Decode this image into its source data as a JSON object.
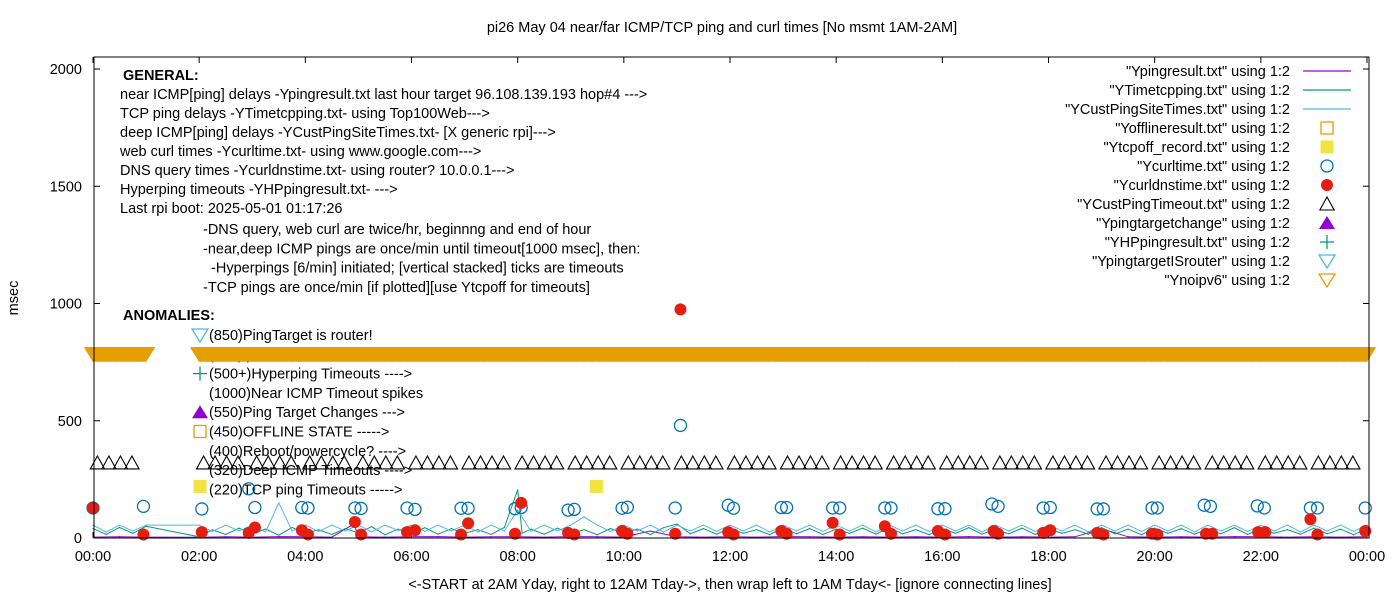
{
  "chart_data": {
    "type": "line",
    "title": "pi26 May 04  near/far ICMP/TCP ping and curl times [No msmt 1AM-2AM]",
    "xlabel": "<-START at 2AM Yday, right to 12AM Tday->, then wrap left to 1AM Tday<- [ignore connecting lines]",
    "ylabel": "msec",
    "xlim": [
      "00:00",
      "24:00"
    ],
    "ylim": [
      0,
      2050
    ],
    "x_ticks": [
      "00:00",
      "02:00",
      "04:00",
      "06:00",
      "08:00",
      "10:00",
      "12:00",
      "14:00",
      "16:00",
      "18:00",
      "20:00",
      "22:00",
      "00:00"
    ],
    "y_ticks": [
      "0",
      "500",
      "1000",
      "1500",
      "2000"
    ],
    "y_tick_values": [
      0,
      500,
      1000,
      1500,
      2000
    ],
    "grid": false,
    "legend_placement": "top-right",
    "colors": {
      "purple": "#9400d3",
      "green": "#009e73",
      "lightblue": "#56b4e9",
      "orange": "#e69f00",
      "yellow": "#f0e442",
      "blue": "#0072b2",
      "red": "#e51e10",
      "black": "#000000"
    },
    "legend": [
      {
        "label": "\"Ypingresult.txt\" using 1:2",
        "symbol": "line",
        "color": "#9400d3"
      },
      {
        "label": "\"YTimetcpping.txt\" using 1:2",
        "symbol": "line",
        "color": "#009e73"
      },
      {
        "label": "\"YCustPingSiteTimes.txt\" using 1:2",
        "symbol": "line",
        "color": "#56b4e9"
      },
      {
        "label": "\"Yofflineresult.txt\" using 1:2",
        "symbol": "open-square",
        "color": "#e69f00"
      },
      {
        "label": "\"Ytcpoff_record.txt\" using 1:2",
        "symbol": "filled-square",
        "color": "#f0e442"
      },
      {
        "label": "\"Ycurltime.txt\" using 1:2",
        "symbol": "open-circle",
        "color": "#0072b2"
      },
      {
        "label": "\"Ycurldnstime.txt\" using 1:2",
        "symbol": "filled-circle",
        "color": "#e51e10"
      },
      {
        "label": "\"YCustPingTimeout.txt\" using 1:2",
        "symbol": "open-triangle",
        "color": "#000000"
      },
      {
        "label": "\"Ypingtargetchange\" using 1:2",
        "symbol": "filled-triangle",
        "color": "#9400d3"
      },
      {
        "label": "\"YHPpingresult.txt\" using 1:2",
        "symbol": "plus",
        "color": "#009e73"
      },
      {
        "label": "\"YpingtargetISrouter\" using 1:2",
        "symbol": "open-down-triangle",
        "color": "#56b4e9"
      },
      {
        "label": "\"Ynoipv6\" using 1:2",
        "symbol": "open-down-triangle",
        "color": "#e69f00"
      }
    ],
    "series": [
      {
        "name": "\"Ypingresult.txt\" using 1:2",
        "kind": "line",
        "color": "#9400d3",
        "x": [
          "00:00",
          "00:30",
          "01:00",
          "02:00",
          "02:30",
          "03:00",
          "03:30",
          "04:00",
          "04:30",
          "04:55",
          "05:00",
          "05:30",
          "06:00",
          "06:30",
          "07:00",
          "07:30",
          "08:00",
          "08:30",
          "09:00",
          "09:30",
          "10:00",
          "10:30",
          "11:00",
          "11:30",
          "12:00",
          "12:30",
          "13:00",
          "13:30",
          "14:00",
          "14:30",
          "15:00",
          "15:30",
          "16:00",
          "16:30",
          "17:00",
          "17:30",
          "18:00",
          "18:30",
          "19:00",
          "19:30",
          "20:00",
          "20:30",
          "21:00",
          "21:30",
          "22:00",
          "22:30",
          "23:00",
          "23:30",
          "24:00"
        ],
        "y": [
          4,
          5,
          4,
          3,
          5,
          4,
          6,
          5,
          4,
          60,
          5,
          4,
          5,
          6,
          4,
          5,
          5,
          4,
          6,
          5,
          4,
          30,
          5,
          4,
          5,
          4,
          6,
          5,
          4,
          5,
          4,
          5,
          4,
          6,
          4,
          5,
          4,
          5,
          40,
          5,
          4,
          5,
          4,
          6,
          5,
          4,
          5,
          4,
          5
        ]
      },
      {
        "name": "\"YTimetcpping.txt\" using 1:2",
        "kind": "line",
        "color": "#009e73",
        "x": [
          "00:00",
          "00:15",
          "00:30",
          "00:45",
          "01:00",
          "02:00",
          "02:15",
          "02:30",
          "02:45",
          "03:00",
          "03:15",
          "03:30",
          "03:45",
          "04:00",
          "04:15",
          "04:30",
          "04:45",
          "05:00",
          "05:15",
          "05:30",
          "05:45",
          "06:00",
          "06:15",
          "06:30",
          "06:45",
          "07:00",
          "07:15",
          "07:30",
          "07:45",
          "08:00",
          "08:05",
          "08:15",
          "08:30",
          "08:45",
          "09:00",
          "09:15",
          "09:30",
          "09:45",
          "10:00",
          "10:15",
          "10:30",
          "10:45",
          "11:00",
          "11:15",
          "11:30",
          "11:45",
          "12:00",
          "12:15",
          "12:30",
          "12:45",
          "13:00",
          "13:15",
          "13:30",
          "13:45",
          "14:00",
          "14:15",
          "14:30",
          "14:45",
          "15:00",
          "15:15",
          "15:30",
          "15:45",
          "16:00",
          "16:15",
          "16:30",
          "16:45",
          "17:00",
          "17:15",
          "17:30",
          "17:45",
          "18:00",
          "18:15",
          "18:30",
          "18:45",
          "19:00",
          "19:15",
          "19:30",
          "19:45",
          "20:00",
          "20:15",
          "20:30",
          "20:45",
          "21:00",
          "21:15",
          "21:30",
          "21:45",
          "22:00",
          "22:15",
          "22:30",
          "22:45",
          "23:00",
          "23:15",
          "23:30",
          "23:45",
          "24:00"
        ],
        "y": [
          40,
          15,
          45,
          20,
          50,
          5,
          35,
          15,
          42,
          18,
          38,
          12,
          45,
          20,
          35,
          15,
          40,
          22,
          48,
          14,
          38,
          18,
          44,
          16,
          40,
          20,
          36,
          15,
          45,
          205,
          20,
          38,
          16,
          42,
          18,
          36,
          14,
          40,
          20,
          38,
          15,
          44,
          60,
          18,
          40,
          16,
          42,
          20,
          36,
          14,
          44,
          18,
          40,
          15,
          38,
          20,
          42,
          16,
          45,
          18,
          36,
          14,
          40,
          20,
          44,
          16,
          38,
          18,
          42,
          15,
          40,
          20,
          36,
          16,
          44,
          18,
          38,
          14,
          42,
          20,
          40,
          16,
          38,
          18,
          44,
          15,
          40,
          20,
          36,
          16,
          42,
          18,
          38,
          14,
          40
        ]
      },
      {
        "name": "\"YCustPingSiteTimes.txt\" using 1:2",
        "kind": "line",
        "color": "#56b4e9",
        "x": [
          "00:00",
          "00:15",
          "00:30",
          "00:45",
          "01:00",
          "02:00",
          "02:15",
          "02:30",
          "02:45",
          "03:00",
          "03:15",
          "03:30",
          "03:45",
          "04:00",
          "04:15",
          "04:30",
          "04:45",
          "05:00",
          "05:15",
          "05:30",
          "05:45",
          "06:00",
          "06:15",
          "06:30",
          "06:45",
          "07:00",
          "07:15",
          "07:30",
          "07:45",
          "08:00",
          "08:15",
          "08:30",
          "08:45",
          "09:00",
          "09:15",
          "09:30",
          "09:45",
          "10:00",
          "10:15",
          "10:30",
          "10:45",
          "11:00",
          "11:15",
          "11:30",
          "11:45",
          "12:00",
          "12:15",
          "12:30",
          "12:45",
          "13:00",
          "13:15",
          "13:30",
          "13:45",
          "14:00",
          "14:15",
          "14:30",
          "14:45",
          "15:00",
          "15:15",
          "15:30",
          "15:45",
          "16:00",
          "16:15",
          "16:30",
          "16:45",
          "17:00",
          "17:15",
          "17:30",
          "17:45",
          "18:00",
          "18:15",
          "18:30",
          "18:45",
          "19:00",
          "19:15",
          "19:30",
          "19:45",
          "20:00",
          "20:15",
          "20:30",
          "20:45",
          "21:00",
          "21:15",
          "21:30",
          "21:45",
          "22:00",
          "22:15",
          "22:30",
          "22:45",
          "23:00",
          "23:15",
          "23:30",
          "23:45",
          "24:00"
        ],
        "y": [
          55,
          25,
          55,
          30,
          55,
          55,
          28,
          55,
          30,
          55,
          26,
          150,
          30,
          55,
          28,
          55,
          30,
          55,
          26,
          55,
          32,
          55,
          28,
          55,
          30,
          55,
          26,
          55,
          30,
          120,
          28,
          55,
          30,
          55,
          90,
          55,
          28,
          55,
          30,
          55,
          26,
          55,
          30,
          55,
          28,
          55,
          30,
          55,
          26,
          55,
          30,
          55,
          28,
          55,
          30,
          55,
          26,
          55,
          30,
          55,
          28,
          55,
          30,
          55,
          26,
          55,
          30,
          55,
          28,
          55,
          30,
          55,
          26,
          55,
          30,
          55,
          28,
          55,
          30,
          55,
          26,
          55,
          30,
          55,
          28,
          55,
          30,
          55,
          26,
          55,
          30,
          55,
          28,
          55
        ]
      },
      {
        "name": "\"Ytcpoff_record.txt\" using 1:2",
        "kind": "filled-square",
        "color": "#f0e442",
        "x": [
          "02:01",
          "09:29"
        ],
        "y": [
          220,
          220
        ]
      },
      {
        "name": "\"Ycurltime.txt\" using 1:2",
        "kind": "open-circle",
        "color": "#0072b2",
        "x": [
          "00:00",
          "00:57",
          "02:03",
          "02:56",
          "03:03",
          "03:56",
          "04:03",
          "04:56",
          "05:03",
          "05:55",
          "06:04",
          "06:56",
          "07:04",
          "07:57",
          "08:04",
          "08:57",
          "09:04",
          "09:58",
          "10:04",
          "10:58",
          "11:04",
          "11:58",
          "12:04",
          "12:58",
          "13:04",
          "13:56",
          "14:04",
          "14:55",
          "15:02",
          "15:55",
          "16:03",
          "16:56",
          "17:03",
          "17:54",
          "18:02",
          "18:55",
          "19:02",
          "19:57",
          "20:03",
          "20:56",
          "21:03",
          "21:56",
          "22:04",
          "22:56",
          "23:04",
          "23:58"
        ],
        "y": [
          128,
          135,
          124,
          210,
          130,
          130,
          128,
          128,
          126,
          128,
          122,
          127,
          127,
          125,
          130,
          119,
          122,
          127,
          131,
          128,
          480,
          140,
          127,
          130,
          130,
          128,
          128,
          128,
          128,
          125,
          125,
          145,
          135,
          128,
          130,
          124,
          124,
          128,
          128,
          140,
          135,
          137,
          128,
          128,
          128,
          128
        ]
      },
      {
        "name": "\"Ycurldnstime.txt\" using 1:2",
        "kind": "filled-circle",
        "color": "#e51e10",
        "x": [
          "00:00",
          "00:57",
          "02:03",
          "02:56",
          "03:03",
          "03:56",
          "04:03",
          "04:56",
          "05:03",
          "05:55",
          "06:04",
          "06:56",
          "07:04",
          "07:57",
          "08:04",
          "08:57",
          "09:04",
          "09:58",
          "10:04",
          "10:58",
          "11:04",
          "11:58",
          "12:04",
          "12:58",
          "13:04",
          "13:56",
          "14:04",
          "14:55",
          "15:02",
          "15:55",
          "16:03",
          "16:58",
          "17:03",
          "17:54",
          "18:02",
          "18:55",
          "19:02",
          "19:57",
          "20:03",
          "20:58",
          "21:05",
          "21:57",
          "22:05",
          "22:56",
          "23:04",
          "23:58"
        ],
        "y": [
          128,
          15,
          25,
          22,
          45,
          33,
          15,
          68,
          15,
          25,
          33,
          15,
          63,
          18,
          150,
          22,
          15,
          30,
          18,
          18,
          975,
          25,
          15,
          30,
          18,
          65,
          15,
          50,
          18,
          30,
          15,
          30,
          18,
          22,
          33,
          22,
          15,
          18,
          15,
          18,
          18,
          25,
          25,
          80,
          15,
          30
        ]
      },
      {
        "name": "\"YCustPingTimeout.txt\" using 1:2",
        "kind": "open-triangle",
        "color": "#000000",
        "y_value": 320,
        "x": [
          "00:05",
          "00:18",
          "00:31",
          "00:44",
          "02:05",
          "02:18",
          "02:31",
          "02:44",
          "03:05",
          "03:18",
          "03:31",
          "03:44",
          "04:05",
          "04:18",
          "04:31",
          "04:44",
          "05:05",
          "05:18",
          "05:31",
          "05:44",
          "06:05",
          "06:18",
          "06:31",
          "06:44",
          "07:05",
          "07:18",
          "07:31",
          "07:44",
          "08:05",
          "08:18",
          "08:31",
          "08:44",
          "09:05",
          "09:18",
          "09:31",
          "09:44",
          "10:05",
          "10:18",
          "10:31",
          "10:44",
          "11:05",
          "11:18",
          "11:31",
          "11:44",
          "12:05",
          "12:18",
          "12:31",
          "12:44",
          "13:05",
          "13:18",
          "13:31",
          "13:44",
          "14:05",
          "14:18",
          "14:31",
          "14:44",
          "15:05",
          "15:18",
          "15:31",
          "15:44",
          "16:05",
          "16:18",
          "16:31",
          "16:44",
          "17:05",
          "17:18",
          "17:31",
          "17:44",
          "18:05",
          "18:18",
          "18:31",
          "18:44",
          "19:05",
          "19:18",
          "19:31",
          "19:44",
          "20:05",
          "20:18",
          "20:31",
          "20:44",
          "21:05",
          "21:18",
          "21:31",
          "21:44",
          "22:05",
          "22:18",
          "22:31",
          "22:44",
          "23:05",
          "23:18",
          "23:31",
          "23:44"
        ]
      },
      {
        "name": "\"Ynoipv6\" using 1:2",
        "kind": "open-down-triangle",
        "color": "#e69f00",
        "y_value": 785,
        "interval_min": 1,
        "ranges": [
          [
            "00:00",
            "01:00"
          ],
          [
            "02:00",
            "24:00"
          ]
        ]
      }
    ]
  },
  "general": {
    "heading": "GENERAL:",
    "lines": [
      "near ICMP[ping] delays -Ypingresult.txt last hour target 96.108.139.193 hop#4 --->",
      "TCP ping delays -YTimetcpping.txt- using Top100Web--->",
      "deep ICMP[ping] delays -YCustPingSiteTimes.txt- [X generic rpi]--->",
      "web curl times -Ycurltime.txt- using www.google.com--->",
      "DNS query times -Ycurldnstime.txt- using router? 10.0.0.1--->",
      "Hyperping timeouts -YHPpingresult.txt- --->",
      "Last rpi boot: 2025-05-01 01:17:26"
    ],
    "notes": [
      "-DNS query, web curl are twice/hr, beginnng and end of hour",
      "-near,deep ICMP pings are once/min until timeout[1000 msec], then:",
      "  -Hyperpings [6/min] initiated; [vertical stacked] ticks are timeouts",
      "-TCP pings are once/min [if plotted][use Ytcpoff for timeouts]"
    ]
  },
  "anomalies": {
    "heading": "ANOMALIES:",
    "lines": [
      {
        "text": "(850)PingTarget is router!",
        "marker": "open-down-triangle",
        "color": "#56b4e9"
      },
      {
        "text": "(785)ipv6 failed",
        "marker": "open-down-triangle",
        "color": "#e69f00"
      },
      {
        "text": "(500+)Hyperping Timeouts ---->",
        "marker": "plus",
        "color": "#009e73"
      },
      {
        "text": "(1000)Near ICMP Timeout spikes",
        "marker": "none",
        "color": ""
      },
      {
        "text": "(550)Ping Target Changes --->",
        "marker": "filled-triangle",
        "color": "#9400d3"
      },
      {
        "text": "(450)OFFLINE STATE ----->",
        "marker": "open-square",
        "color": "#e69f00"
      },
      {
        "text": "(400)Reboot/powercycle? ---->",
        "marker": "none",
        "color": ""
      },
      {
        "text": "(320)Deep ICMP Timeouts ---->",
        "marker": "none",
        "color": ""
      },
      {
        "text": "(220)TCP ping Timeouts ----->",
        "marker": "none",
        "color": ""
      }
    ]
  }
}
